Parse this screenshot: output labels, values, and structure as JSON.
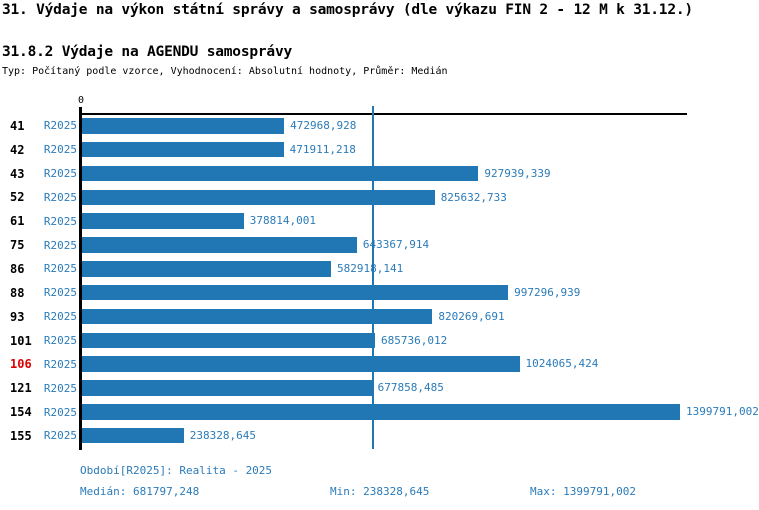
{
  "title": "31. Výdaje na výkon státní správy a samosprávy (dle výkazu FIN 2 - 12 M k 31.12.)",
  "subtitle": "31.8.2 Výdaje na AGENDU samosprávy",
  "meta": "Typ: Počítaný podle vzorce, Vyhodnocení: Absolutní hodnoty, Průměr: Medián",
  "colors": {
    "bar": "#2077b4",
    "blue_text": "#2b7bb9",
    "highlight": "#e00000",
    "axis": "#000000"
  },
  "chart_data": {
    "type": "bar",
    "orientation": "horizontal",
    "title": "31.8.2 Výdaje na AGENDU samosprávy",
    "x_axis_zero_label": "0",
    "categories": [
      "41",
      "42",
      "43",
      "52",
      "61",
      "75",
      "86",
      "88",
      "93",
      "101",
      "106",
      "121",
      "154",
      "155"
    ],
    "period_label": "R2025",
    "values": [
      472968.928,
      471911.218,
      927939.339,
      825632.733,
      378814.001,
      643367.914,
      582918.141,
      997296.939,
      820269.691,
      685736.012,
      1024065.424,
      677858.485,
      1399791.002,
      238328.645
    ],
    "value_labels": [
      "472968,928",
      "471911,218",
      "927939,339",
      "825632,733",
      "378814,001",
      "643367,914",
      "582918,141",
      "997296,939",
      "820269,691",
      "685736,012",
      "1024065,424",
      "677858,485",
      "1399791,002",
      "238328,645"
    ],
    "highlighted_category": "106",
    "median": 681797.248,
    "min": 238328.645,
    "max": 1399791.002,
    "xlim": [
      0,
      1399791.002
    ],
    "median_line": true,
    "legend_position": "none"
  },
  "footer": {
    "period": "Období[R2025]: Realita - 2025",
    "median": "Medián: 681797,248",
    "min": "Min: 238328,645",
    "max": "Max: 1399791,002"
  }
}
